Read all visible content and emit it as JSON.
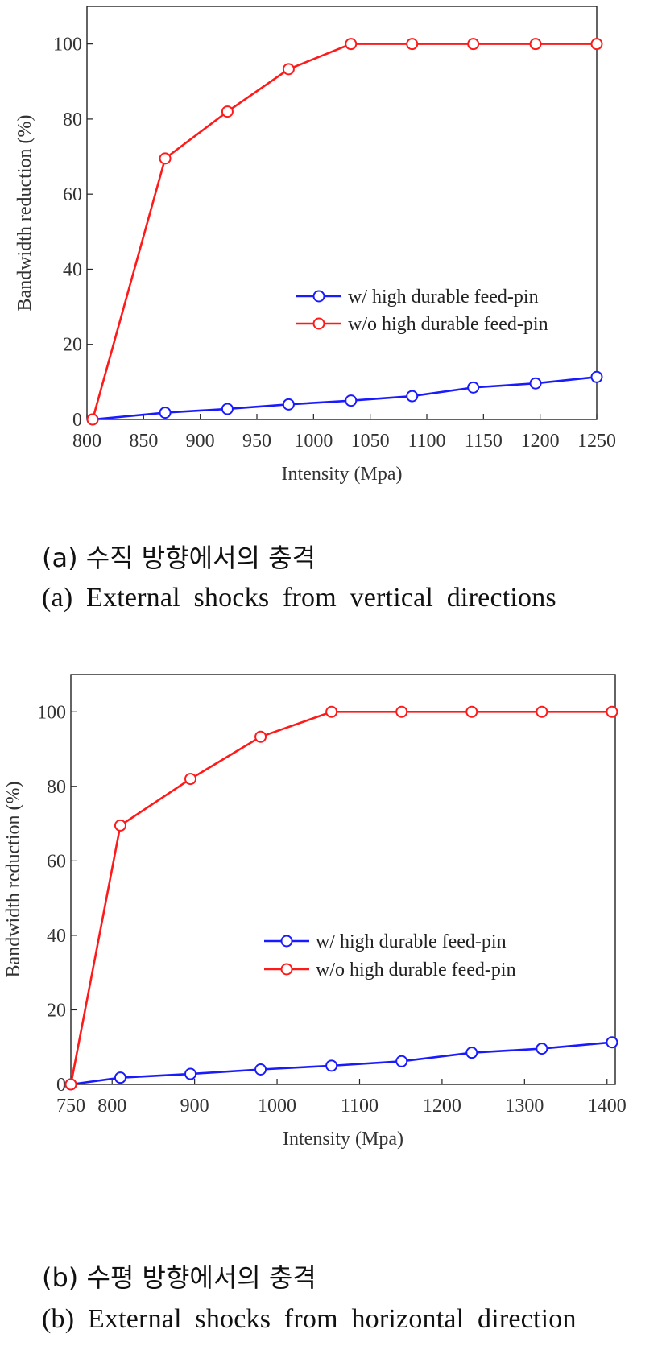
{
  "captions": {
    "a_korean": "(a) 수직 방향에서의 충격",
    "a_english": "(a) External shocks from vertical directions",
    "b_korean": "(b) 수평 방향에서의 충격",
    "b_english": "(b) External shocks from horizontal direction"
  },
  "colors": {
    "blue": "#1a1aff",
    "red": "#ff1a1a"
  },
  "chart_data": [
    {
      "type": "line",
      "xlabel": "Intensity (Mpa)",
      "ylabel": "Bandwidth reduction (%)",
      "xlim": [
        800,
        1250
      ],
      "ylim": [
        0,
        110
      ],
      "xticks": [
        800,
        850,
        900,
        950,
        1000,
        1050,
        1100,
        1150,
        1200,
        1250
      ],
      "yticks": [
        0,
        20,
        40,
        60,
        80,
        100
      ],
      "legend_position": "center-right",
      "series": [
        {
          "name": "w/ high durable feed-pin",
          "color": "#1a1aff",
          "x": [
            805,
            869,
            924,
            978,
            1033,
            1087,
            1141,
            1196,
            1250
          ],
          "y": [
            0,
            1.8,
            2.8,
            4,
            5,
            6.2,
            8.5,
            9.6,
            11.3
          ]
        },
        {
          "name": "w/o high durable feed-pin",
          "color": "#ff1a1a",
          "x": [
            805,
            869,
            924,
            978,
            1033,
            1087,
            1141,
            1196,
            1250
          ],
          "y": [
            0,
            69.5,
            82,
            93.3,
            100,
            100,
            100,
            100,
            100
          ]
        }
      ]
    },
    {
      "type": "line",
      "xlabel": "Intensity (Mpa)",
      "ylabel": "Bandwidth reduction (%)",
      "xlim": [
        750,
        1410
      ],
      "ylim": [
        0,
        110
      ],
      "xticks": [
        750,
        800,
        900,
        1000,
        1100,
        1200,
        1300,
        1400
      ],
      "yticks": [
        0,
        20,
        40,
        60,
        80,
        100
      ],
      "legend_position": "center-right",
      "series": [
        {
          "name": "w/ high durable feed-pin",
          "color": "#1a1aff",
          "x": [
            750,
            810,
            895,
            980,
            1066,
            1151,
            1236,
            1321,
            1406
          ],
          "y": [
            0,
            1.8,
            2.8,
            4,
            5,
            6.2,
            8.5,
            9.6,
            11.3
          ]
        },
        {
          "name": "w/o high durable feed-pin",
          "color": "#ff1a1a",
          "x": [
            750,
            810,
            895,
            980,
            1066,
            1151,
            1236,
            1321,
            1406
          ],
          "y": [
            0,
            69.5,
            82,
            93.3,
            100,
            100,
            100,
            100,
            100
          ]
        }
      ]
    }
  ]
}
